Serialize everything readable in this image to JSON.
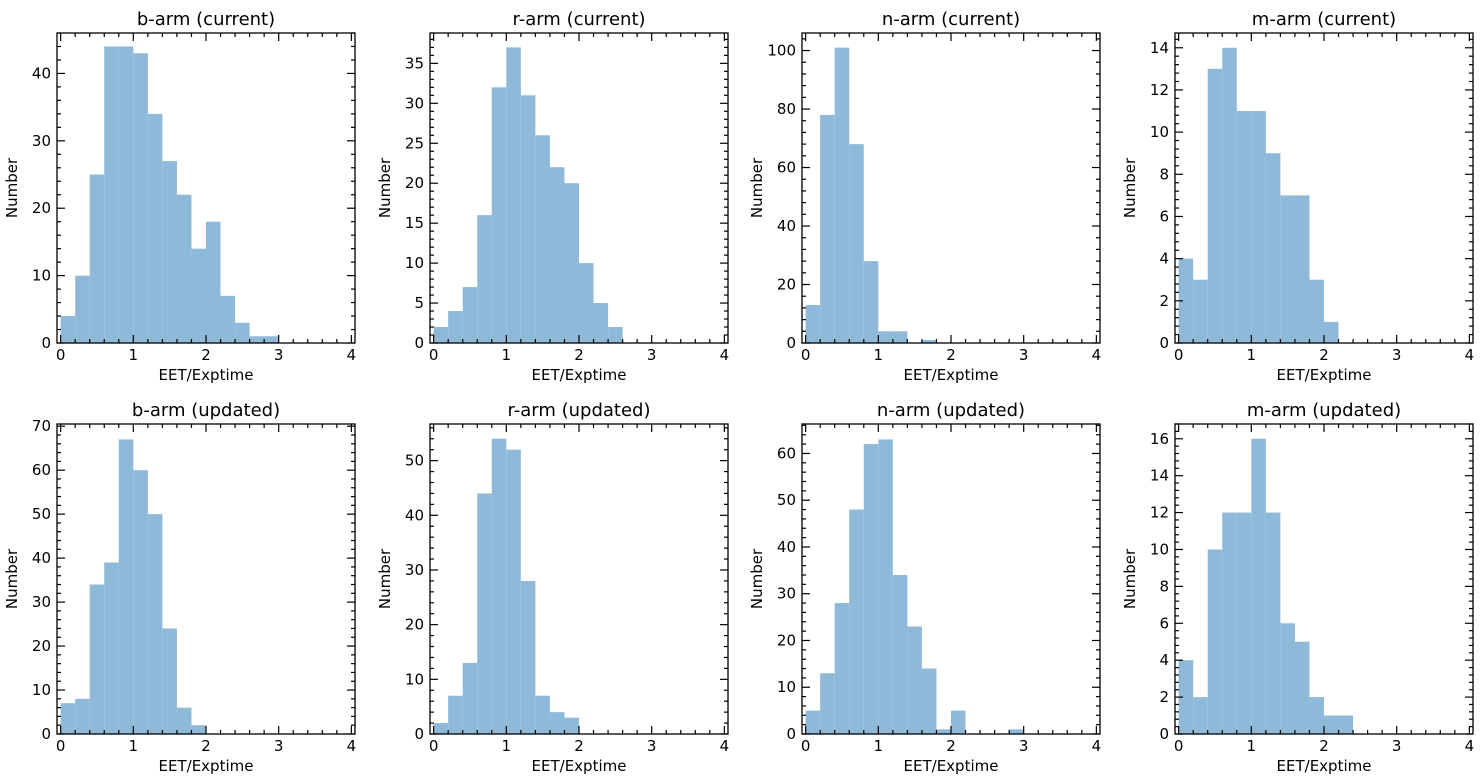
{
  "chart_data": [
    {
      "type": "bar",
      "title": "b-arm (current)",
      "xlabel": "EET/Exptime",
      "ylabel": "Number",
      "xlim": [
        -0.05,
        4.05
      ],
      "ylim": [
        0,
        46
      ],
      "xticks": [
        0,
        1,
        2,
        3,
        4
      ],
      "yticks": [
        0,
        10,
        20,
        30,
        40
      ],
      "bin_width": 0.2,
      "bin_start": 0,
      "values": [
        4,
        10,
        25,
        44,
        44,
        43,
        34,
        27,
        22,
        14,
        18,
        7,
        3,
        1,
        1,
        0,
        0,
        0,
        0,
        0
      ],
      "color": "#8fb9d9"
    },
    {
      "type": "bar",
      "title": "r-arm (current)",
      "xlabel": "EET/Exptime",
      "ylabel": "Number",
      "xlim": [
        -0.05,
        4.05
      ],
      "ylim": [
        0,
        38.8
      ],
      "xticks": [
        0,
        1,
        2,
        3,
        4
      ],
      "yticks": [
        0,
        5,
        10,
        15,
        20,
        25,
        30,
        35
      ],
      "bin_width": 0.2,
      "bin_start": 0,
      "values": [
        2,
        4,
        7,
        16,
        32,
        37,
        31,
        26,
        22,
        20,
        10,
        5,
        2,
        0,
        0,
        0,
        0,
        0,
        0,
        0
      ],
      "color": "#8fb9d9"
    },
    {
      "type": "bar",
      "title": "n-arm (current)",
      "xlabel": "EET/Exptime",
      "ylabel": "Number",
      "xlim": [
        -0.05,
        4.05
      ],
      "ylim": [
        0,
        106
      ],
      "xticks": [
        0,
        1,
        2,
        3,
        4
      ],
      "yticks": [
        0,
        20,
        40,
        60,
        80,
        100
      ],
      "bin_width": 0.2,
      "bin_start": 0,
      "values": [
        13,
        78,
        101,
        68,
        28,
        4,
        4,
        0,
        1,
        0,
        0,
        0,
        0,
        0,
        0,
        0,
        0,
        0,
        0,
        0
      ],
      "color": "#8fb9d9"
    },
    {
      "type": "bar",
      "title": "m-arm (current)",
      "xlabel": "EET/Exptime",
      "ylabel": "Number",
      "xlim": [
        -0.05,
        4.05
      ],
      "ylim": [
        0,
        14.7
      ],
      "xticks": [
        0,
        1,
        2,
        3,
        4
      ],
      "yticks": [
        0,
        2,
        4,
        6,
        8,
        10,
        12,
        14
      ],
      "bin_width": 0.2,
      "bin_start": 0,
      "values": [
        4,
        3,
        13,
        14,
        11,
        11,
        9,
        7,
        7,
        3,
        1,
        0,
        0,
        0,
        0,
        0,
        0,
        0,
        0,
        0
      ],
      "color": "#8fb9d9"
    },
    {
      "type": "bar",
      "title": "b-arm (updated)",
      "xlabel": "EET/Exptime",
      "ylabel": "Number",
      "xlim": [
        -0.05,
        4.05
      ],
      "ylim": [
        0,
        70.5
      ],
      "xticks": [
        0,
        1,
        2,
        3,
        4
      ],
      "yticks": [
        0,
        10,
        20,
        30,
        40,
        50,
        60,
        70
      ],
      "bin_width": 0.2,
      "bin_start": 0,
      "values": [
        7,
        8,
        34,
        39,
        67,
        60,
        50,
        24,
        6,
        2,
        0,
        0,
        0,
        0,
        0,
        0,
        0,
        0,
        0,
        0
      ],
      "color": "#8fb9d9"
    },
    {
      "type": "bar",
      "title": "r-arm (updated)",
      "xlabel": "EET/Exptime",
      "ylabel": "Number",
      "xlim": [
        -0.05,
        4.05
      ],
      "ylim": [
        0,
        56.7
      ],
      "xticks": [
        0,
        1,
        2,
        3,
        4
      ],
      "yticks": [
        0,
        10,
        20,
        30,
        40,
        50
      ],
      "bin_width": 0.2,
      "bin_start": 0,
      "values": [
        2,
        7,
        13,
        44,
        54,
        52,
        28,
        7,
        4,
        3,
        0,
        0,
        0,
        0,
        0,
        0,
        0,
        0,
        0,
        0
      ],
      "color": "#8fb9d9"
    },
    {
      "type": "bar",
      "title": "n-arm (updated)",
      "xlabel": "EET/Exptime",
      "ylabel": "Number",
      "xlim": [
        -0.05,
        4.05
      ],
      "ylim": [
        0,
        66.3
      ],
      "xticks": [
        0,
        1,
        2,
        3,
        4
      ],
      "yticks": [
        0,
        10,
        20,
        30,
        40,
        50,
        60
      ],
      "bin_width": 0.2,
      "bin_start": 0,
      "values": [
        5,
        13,
        28,
        48,
        62,
        63,
        34,
        23,
        14,
        1,
        5,
        0,
        0,
        0,
        1,
        0,
        0,
        0,
        0,
        0
      ],
      "color": "#8fb9d9"
    },
    {
      "type": "bar",
      "title": "m-arm (updated)",
      "xlabel": "EET/Exptime",
      "ylabel": "Number",
      "xlim": [
        -0.05,
        4.05
      ],
      "ylim": [
        0,
        16.8
      ],
      "xticks": [
        0,
        1,
        2,
        3,
        4
      ],
      "yticks": [
        0,
        2,
        4,
        6,
        8,
        10,
        12,
        14,
        16
      ],
      "bin_width": 0.2,
      "bin_start": 0,
      "values": [
        4,
        2,
        10,
        12,
        12,
        16,
        12,
        6,
        5,
        2,
        1,
        1,
        0,
        0,
        0,
        0,
        0,
        0,
        0,
        0
      ],
      "color": "#8fb9d9"
    }
  ]
}
